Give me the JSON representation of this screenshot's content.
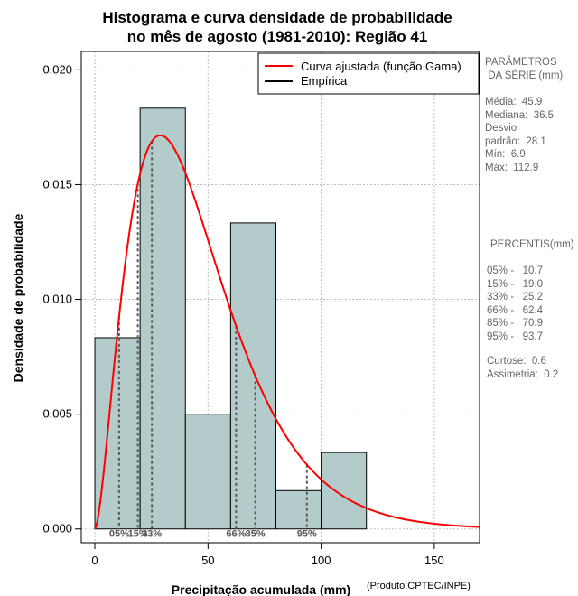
{
  "chart_data": {
    "type": "bar",
    "title_lines": [
      "Histograma e curva densidade de probabilidade",
      "no mês de agosto (1981-2010): Região 41"
    ],
    "xlabel": "Precipitação acumulada (mm)",
    "ylabel": "Densidade de probabilidade",
    "credit": "(Produto:CPTEC/INPE)",
    "xlim": [
      -6,
      170
    ],
    "ylim": [
      -0.0006,
      0.0208
    ],
    "x_ticks": [
      0,
      50,
      100,
      150
    ],
    "y_ticks": [
      0.0,
      0.005,
      0.01,
      0.015,
      0.02
    ],
    "y_tick_labels": [
      "0.000",
      "0.005",
      "0.010",
      "0.015",
      "0.020"
    ],
    "grid": true,
    "bins": [
      {
        "x0": 0,
        "x1": 20,
        "density": 0.00833
      },
      {
        "x0": 20,
        "x1": 40,
        "density": 0.01833
      },
      {
        "x0": 40,
        "x1": 60,
        "density": 0.005
      },
      {
        "x0": 60,
        "x1": 80,
        "density": 0.01333
      },
      {
        "x0": 80,
        "x1": 100,
        "density": 0.00167
      },
      {
        "x0": 100,
        "x1": 120,
        "density": 0.00333
      }
    ],
    "gamma_fit": {
      "shape": 2.7,
      "scale": 17.0
    },
    "percentile_markers": [
      {
        "label": "05%",
        "x": 10.7
      },
      {
        "label": "15%",
        "x": 19.0
      },
      {
        "label": "33%",
        "x": 25.2
      },
      {
        "label": "66%",
        "x": 62.4
      },
      {
        "label": "85%",
        "x": 70.9
      },
      {
        "label": "95%",
        "x": 93.7
      }
    ],
    "legend": {
      "position": "top-right",
      "entries": [
        {
          "label": "Curva ajustada (função Gama)",
          "color": "#ff0000"
        },
        {
          "label": "Empírica",
          "color": "#000000"
        }
      ]
    },
    "colors": {
      "bar_fill": "#b3cccb",
      "curve": "#ff0000",
      "grid": "#bebebe",
      "marker": "#555555"
    }
  },
  "side_panel": {
    "params_title": "PARÂMETROS\n DA SÉRIE (mm)",
    "params_body": "Média:  45.9\nMediana:  36.5\nDesvio\npadrão:  28.1\nMín:  6.9\nMáx:  112.9",
    "percentis_title": "PERCENTIS(mm)",
    "percentis_body": "05% -   10.7\n15% -   19.0\n33% -   25.2\n66% -   62.4\n85% -   70.9\n95% -   93.7",
    "shape_body": "Curtose:  0.6\nAssimetria:  0.2"
  }
}
